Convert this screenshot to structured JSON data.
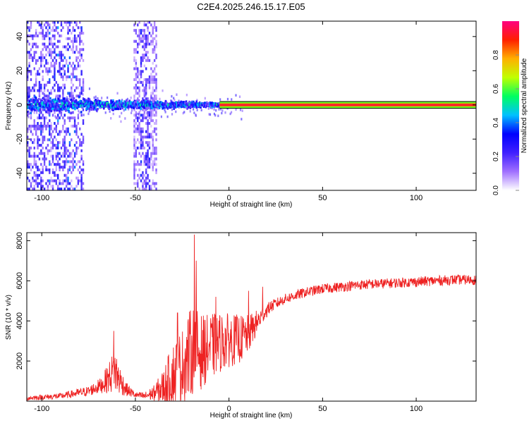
{
  "title": "C2E4.2025.246.15.17.E05",
  "chart_data": [
    {
      "type": "heatmap",
      "name": "spectrogram",
      "xlabel": "Height of straight line (km)",
      "ylabel": "Frequency (Hz)",
      "xlim": [
        -108,
        132
      ],
      "ylim": [
        -50,
        49
      ],
      "xticks": [
        -100,
        -50,
        0,
        50,
        100
      ],
      "yticks": [
        -40,
        -20,
        0,
        20,
        40
      ],
      "band_center_hz": 0,
      "band_halfwidth_hz": 2,
      "colorbar": {
        "label": "Normalized spectral amplitude",
        "range": [
          0.0,
          1.0
        ],
        "ticks": [
          0.0,
          0.2,
          0.4,
          0.6,
          0.8
        ],
        "colors": [
          "#ffffff",
          "#a070ff",
          "#4020ff",
          "#0000ff",
          "#00c0ff",
          "#00ff60",
          "#c0ff00",
          "#ffb000",
          "#ff2000",
          "#ff0080"
        ]
      },
      "regions": [
        {
          "label": "broadband noise",
          "x_range": [
            -108,
            -78
          ],
          "amplitude": 0.25
        },
        {
          "label": "noise strip",
          "x_range": [
            -51,
            -39
          ],
          "amplitude": 0.2
        },
        {
          "label": "scattered signal near 0 Hz",
          "x_range": [
            -108,
            -3
          ],
          "amplitude": 0.45
        },
        {
          "label": "saturated line at 0 Hz",
          "x_range": [
            -5,
            132
          ],
          "amplitude": 0.95
        }
      ]
    },
    {
      "type": "line",
      "name": "snr",
      "xlabel": "Height of straight line (km)",
      "ylabel": "SNR (10 * v/v)",
      "xlim": [
        -108,
        132
      ],
      "ylim": [
        0,
        8400
      ],
      "xticks": [
        -100,
        -50,
        0,
        50,
        100
      ],
      "yticks": [
        2000,
        4000,
        6000,
        8000
      ],
      "color": "#ee2222",
      "envelope": {
        "x": [
          -108,
          -90,
          -75,
          -68,
          -63,
          -61,
          -58,
          -55,
          -50,
          -45,
          -40,
          -35,
          -31,
          -28,
          -25,
          -22,
          -19,
          -18,
          -16,
          -14,
          -12,
          -8,
          -5,
          -2,
          2,
          6,
          10,
          14,
          18,
          22,
          30,
          40,
          50,
          60,
          70,
          80,
          90,
          100,
          110,
          120,
          132
        ],
        "base": [
          150,
          250,
          500,
          800,
          1300,
          1500,
          1000,
          600,
          300,
          250,
          400,
          700,
          1200,
          1500,
          1800,
          2200,
          2600,
          2700,
          2400,
          2500,
          2600,
          2800,
          2900,
          3000,
          3050,
          3100,
          3300,
          3800,
          4300,
          4700,
          5100,
          5400,
          5600,
          5700,
          5800,
          5850,
          5900,
          5950,
          6000,
          6050,
          6050
        ],
        "amp": [
          120,
          150,
          250,
          400,
          900,
          1200,
          700,
          350,
          150,
          200,
          400,
          900,
          1500,
          1800,
          1800,
          2200,
          2200,
          2000,
          2000,
          1800,
          1700,
          1600,
          1500,
          1400,
          1300,
          1200,
          1000,
          700,
          400,
          300,
          250,
          250,
          250,
          250,
          250,
          250,
          250,
          250,
          250,
          250,
          250
        ]
      },
      "spikes": [
        {
          "x": -61.5,
          "value": 3500
        },
        {
          "x": -27.5,
          "value": 4400
        },
        {
          "x": -18.5,
          "value": 8300
        },
        {
          "x": -17.5,
          "value": 7000
        },
        {
          "x": -7,
          "value": 5200
        },
        {
          "x": 10.5,
          "value": 5500
        },
        {
          "x": 18,
          "value": 5700
        }
      ]
    }
  ]
}
